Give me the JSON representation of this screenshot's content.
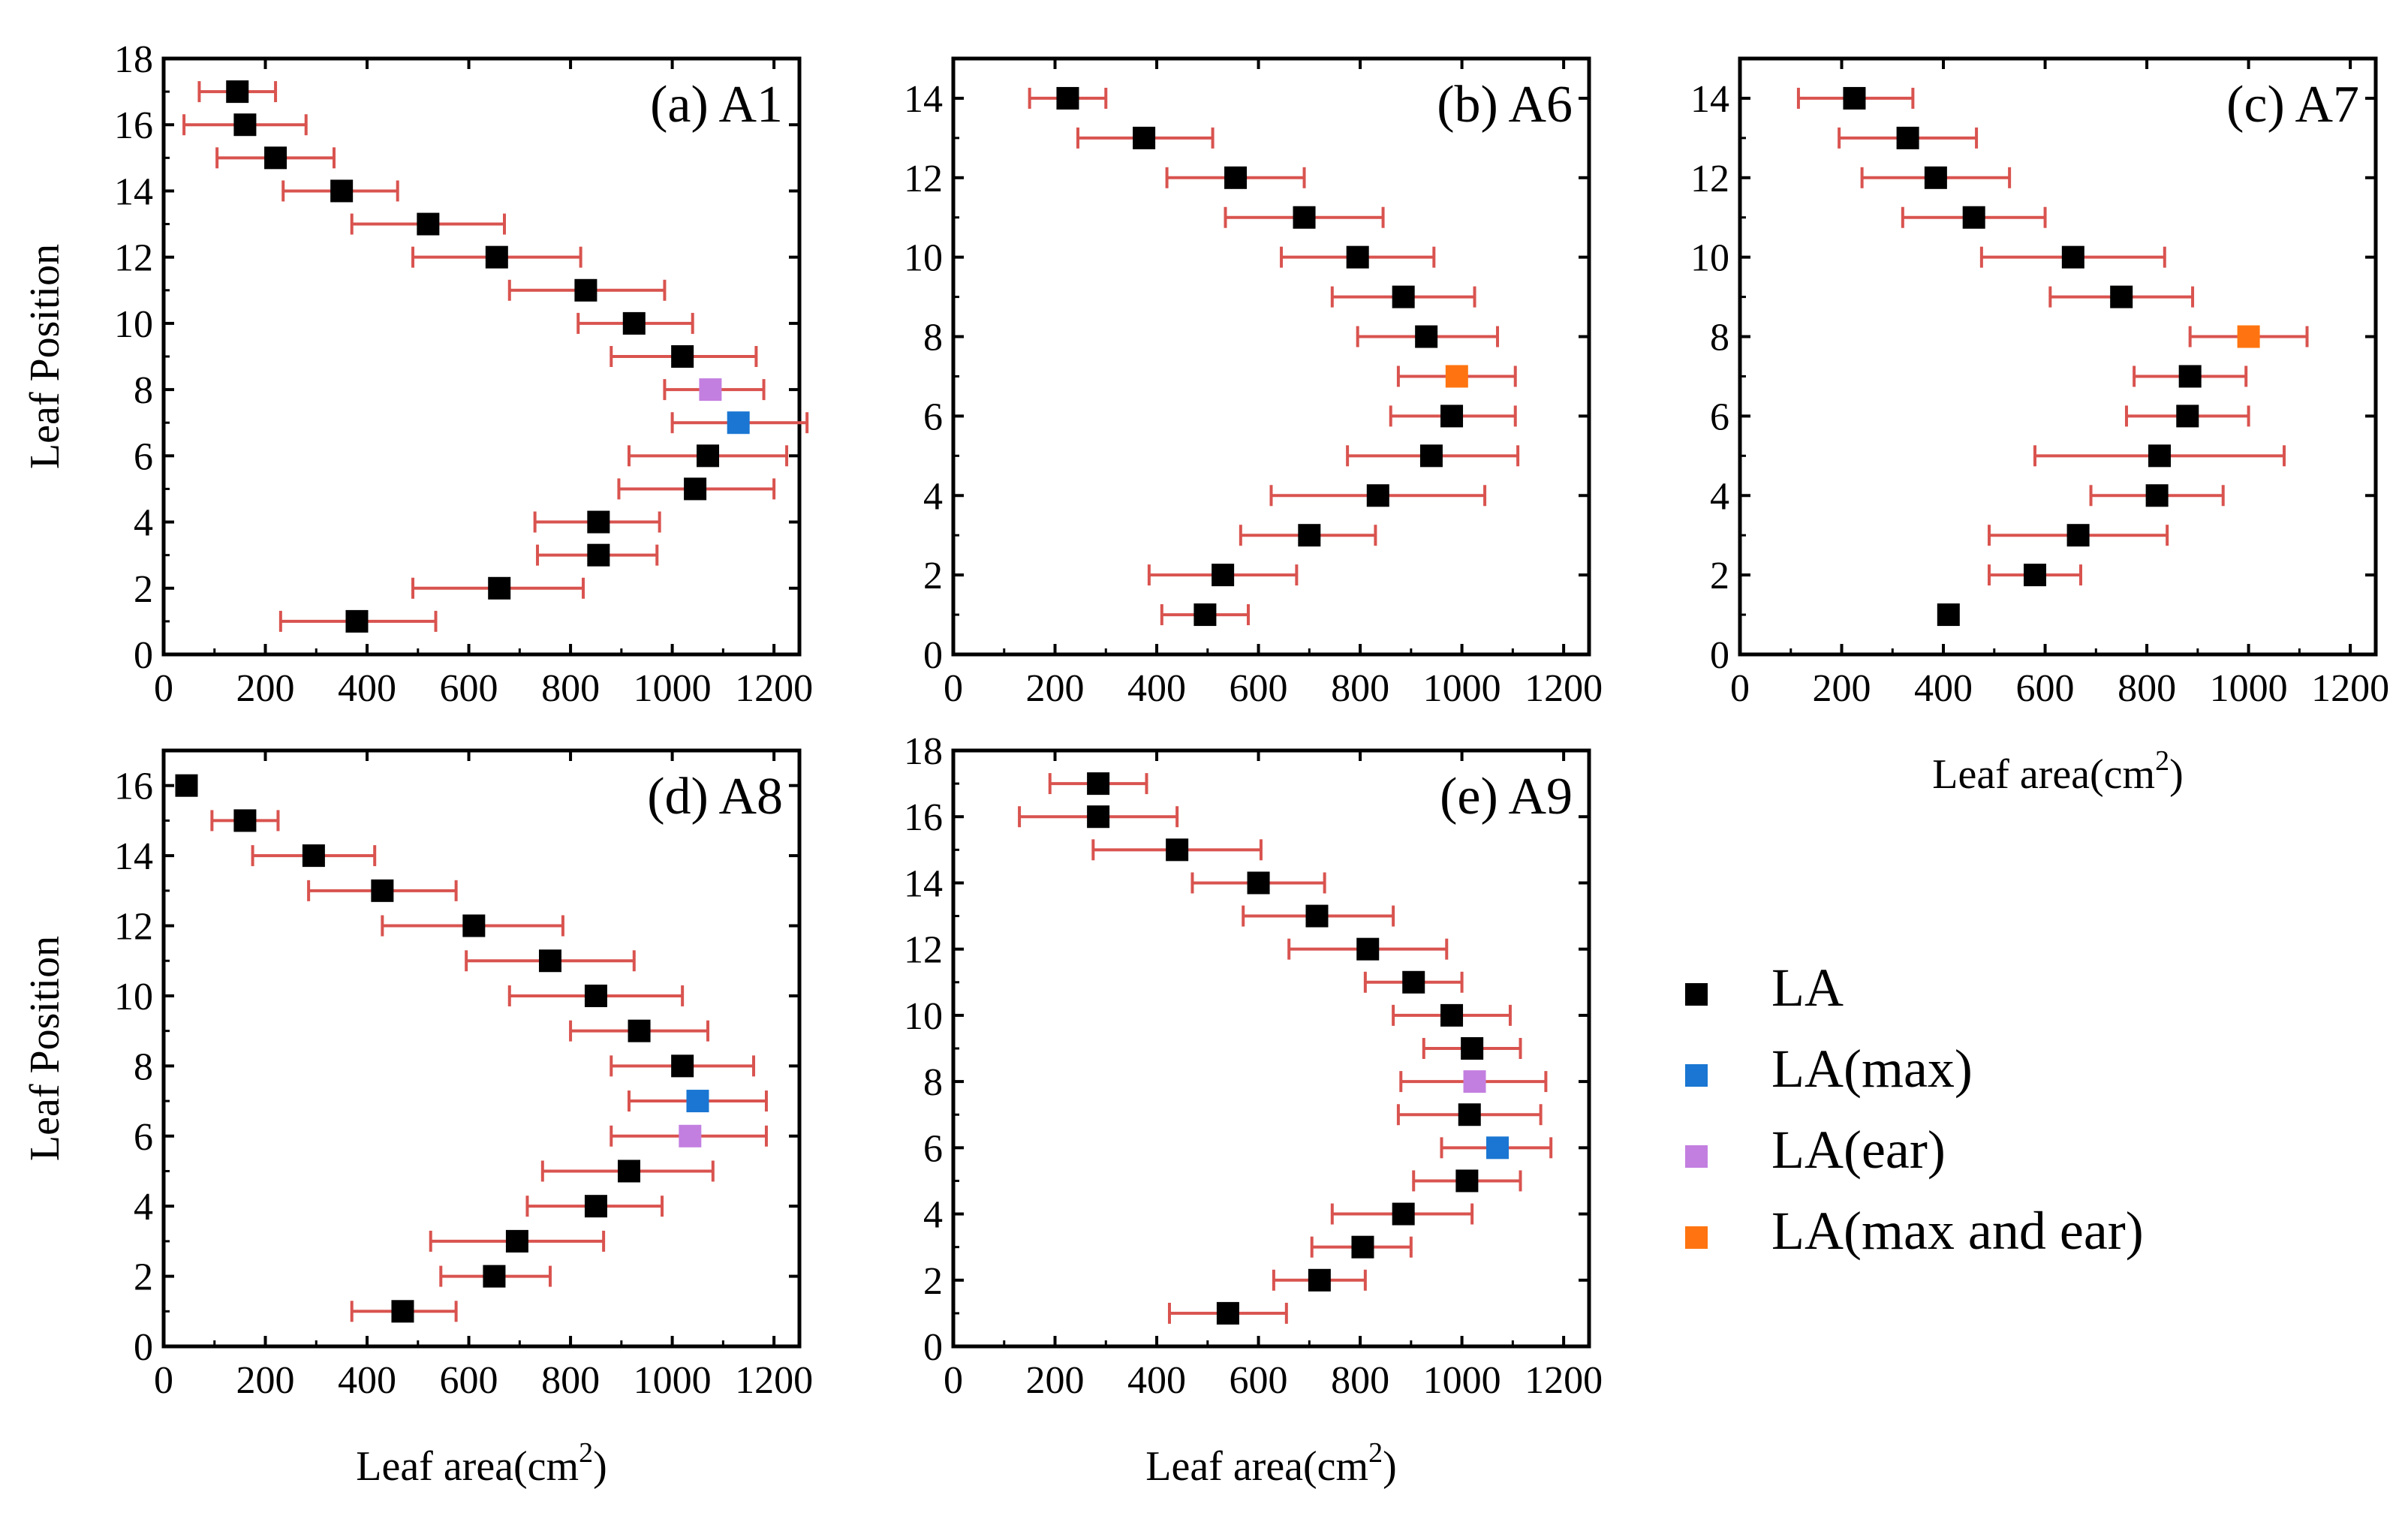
{
  "figure": {
    "xlabel_prefix": "Leaf area(cm",
    "xlabel_sup": "2",
    "xlabel_suffix": ")",
    "ylabel": "Leaf  Position"
  },
  "legend": [
    {
      "label": "LA",
      "color": "#000000"
    },
    {
      "label": "LA(max)",
      "color": "#1a76d2"
    },
    {
      "label": "LA(ear)",
      "color": "#c37fe0"
    },
    {
      "label": "LA(max and ear)",
      "color": "#ff7410"
    }
  ],
  "colors": {
    "LA": "#000000",
    "max": "#1a76d2",
    "ear": "#c37fe0",
    "maxear": "#ff7410",
    "errorbar": "#d9534f"
  },
  "chart_data": [
    {
      "id": "a",
      "title": "(a) A1",
      "type": "scatter",
      "xlabel": "",
      "ylabel": "Leaf  Position",
      "xlim": [
        0,
        1250
      ],
      "ylim": [
        0,
        18
      ],
      "xticks": [
        0,
        200,
        400,
        600,
        800,
        1000,
        1200
      ],
      "yticks": [
        0,
        2,
        4,
        6,
        8,
        10,
        12,
        14,
        16,
        18
      ],
      "points": [
        {
          "y": 17,
          "x": 145,
          "lo": 70,
          "hi": 220,
          "kind": "LA"
        },
        {
          "y": 16,
          "x": 160,
          "lo": 40,
          "hi": 280,
          "kind": "LA"
        },
        {
          "y": 15,
          "x": 220,
          "lo": 105,
          "hi": 335,
          "kind": "LA"
        },
        {
          "y": 14,
          "x": 350,
          "lo": 235,
          "hi": 460,
          "kind": "LA"
        },
        {
          "y": 13,
          "x": 520,
          "lo": 370,
          "hi": 670,
          "kind": "LA"
        },
        {
          "y": 12,
          "x": 655,
          "lo": 490,
          "hi": 820,
          "kind": "LA"
        },
        {
          "y": 11,
          "x": 830,
          "lo": 680,
          "hi": 985,
          "kind": "LA"
        },
        {
          "y": 10,
          "x": 925,
          "lo": 815,
          "hi": 1040,
          "kind": "LA"
        },
        {
          "y": 9,
          "x": 1020,
          "lo": 880,
          "hi": 1165,
          "kind": "LA"
        },
        {
          "y": 8,
          "x": 1075,
          "lo": 985,
          "hi": 1180,
          "kind": "ear"
        },
        {
          "y": 7,
          "x": 1130,
          "lo": 1000,
          "hi": 1265,
          "kind": "max"
        },
        {
          "y": 6,
          "x": 1070,
          "lo": 915,
          "hi": 1225,
          "kind": "LA"
        },
        {
          "y": 5,
          "x": 1045,
          "lo": 895,
          "hi": 1200,
          "kind": "LA"
        },
        {
          "y": 4,
          "x": 855,
          "lo": 730,
          "hi": 975,
          "kind": "LA"
        },
        {
          "y": 3,
          "x": 855,
          "lo": 735,
          "hi": 970,
          "kind": "LA"
        },
        {
          "y": 2,
          "x": 660,
          "lo": 490,
          "hi": 825,
          "kind": "LA"
        },
        {
          "y": 1,
          "x": 380,
          "lo": 230,
          "hi": 535,
          "kind": "LA"
        }
      ]
    },
    {
      "id": "b",
      "title": "(b) A6",
      "type": "scatter",
      "xlabel": "",
      "ylabel": "",
      "xlim": [
        0,
        1250
      ],
      "ylim": [
        0,
        15
      ],
      "xticks": [
        0,
        200,
        400,
        600,
        800,
        1000,
        1200
      ],
      "yticks": [
        0,
        2,
        4,
        6,
        8,
        10,
        12,
        14
      ],
      "points": [
        {
          "y": 14,
          "x": 225,
          "lo": 150,
          "hi": 300,
          "kind": "LA"
        },
        {
          "y": 13,
          "x": 375,
          "lo": 245,
          "hi": 510,
          "kind": "LA"
        },
        {
          "y": 12,
          "x": 555,
          "lo": 420,
          "hi": 690,
          "kind": "LA"
        },
        {
          "y": 11,
          "x": 690,
          "lo": 535,
          "hi": 845,
          "kind": "LA"
        },
        {
          "y": 10,
          "x": 795,
          "lo": 645,
          "hi": 945,
          "kind": "LA"
        },
        {
          "y": 9,
          "x": 885,
          "lo": 745,
          "hi": 1025,
          "kind": "LA"
        },
        {
          "y": 8,
          "x": 930,
          "lo": 795,
          "hi": 1070,
          "kind": "LA"
        },
        {
          "y": 7,
          "x": 990,
          "lo": 875,
          "hi": 1105,
          "kind": "maxear"
        },
        {
          "y": 6,
          "x": 980,
          "lo": 860,
          "hi": 1105,
          "kind": "LA"
        },
        {
          "y": 5,
          "x": 940,
          "lo": 775,
          "hi": 1110,
          "kind": "LA"
        },
        {
          "y": 4,
          "x": 835,
          "lo": 625,
          "hi": 1045,
          "kind": "LA"
        },
        {
          "y": 3,
          "x": 700,
          "lo": 565,
          "hi": 830,
          "kind": "LA"
        },
        {
          "y": 2,
          "x": 530,
          "lo": 385,
          "hi": 675,
          "kind": "LA"
        },
        {
          "y": 1,
          "x": 495,
          "lo": 410,
          "hi": 580,
          "kind": "LA"
        }
      ]
    },
    {
      "id": "c",
      "title": "(c) A7",
      "type": "scatter",
      "xlabel": "Leaf area(cm2)",
      "ylabel": "",
      "xlim": [
        0,
        1250
      ],
      "ylim": [
        0,
        15
      ],
      "xticks": [
        0,
        200,
        400,
        600,
        800,
        1000,
        1200
      ],
      "yticks": [
        0,
        2,
        4,
        6,
        8,
        10,
        12,
        14
      ],
      "points": [
        {
          "y": 14,
          "x": 225,
          "lo": 115,
          "hi": 340,
          "kind": "LA"
        },
        {
          "y": 13,
          "x": 330,
          "lo": 195,
          "hi": 465,
          "kind": "LA"
        },
        {
          "y": 12,
          "x": 385,
          "lo": 240,
          "hi": 530,
          "kind": "LA"
        },
        {
          "y": 11,
          "x": 460,
          "lo": 320,
          "hi": 600,
          "kind": "LA"
        },
        {
          "y": 10,
          "x": 655,
          "lo": 475,
          "hi": 835,
          "kind": "LA"
        },
        {
          "y": 9,
          "x": 750,
          "lo": 610,
          "hi": 890,
          "kind": "LA"
        },
        {
          "y": 8,
          "x": 1000,
          "lo": 885,
          "hi": 1115,
          "kind": "maxear"
        },
        {
          "y": 7,
          "x": 885,
          "lo": 775,
          "hi": 995,
          "kind": "LA"
        },
        {
          "y": 6,
          "x": 880,
          "lo": 760,
          "hi": 1000,
          "kind": "LA"
        },
        {
          "y": 5,
          "x": 825,
          "lo": 580,
          "hi": 1070,
          "kind": "LA"
        },
        {
          "y": 4,
          "x": 820,
          "lo": 690,
          "hi": 950,
          "kind": "LA"
        },
        {
          "y": 3,
          "x": 665,
          "lo": 490,
          "hi": 840,
          "kind": "LA"
        },
        {
          "y": 2,
          "x": 580,
          "lo": 490,
          "hi": 670,
          "kind": "LA"
        },
        {
          "y": 1,
          "x": 410,
          "lo": 410,
          "hi": 410,
          "kind": "LA"
        }
      ]
    },
    {
      "id": "d",
      "title": "(d) A8",
      "type": "scatter",
      "xlabel": "Leaf area(cm2)",
      "ylabel": "Leaf  Position",
      "xlim": [
        0,
        1250
      ],
      "ylim": [
        0,
        17
      ],
      "xticks": [
        0,
        200,
        400,
        600,
        800,
        1000,
        1200
      ],
      "yticks": [
        0,
        2,
        4,
        6,
        8,
        10,
        12,
        14,
        16
      ],
      "points": [
        {
          "y": 16,
          "x": 45,
          "lo": 45,
          "hi": 45,
          "kind": "LA"
        },
        {
          "y": 15,
          "x": 160,
          "lo": 95,
          "hi": 225,
          "kind": "LA"
        },
        {
          "y": 14,
          "x": 295,
          "lo": 175,
          "hi": 415,
          "kind": "LA"
        },
        {
          "y": 13,
          "x": 430,
          "lo": 285,
          "hi": 575,
          "kind": "LA"
        },
        {
          "y": 12,
          "x": 610,
          "lo": 430,
          "hi": 785,
          "kind": "LA"
        },
        {
          "y": 11,
          "x": 760,
          "lo": 595,
          "hi": 925,
          "kind": "LA"
        },
        {
          "y": 10,
          "x": 850,
          "lo": 680,
          "hi": 1020,
          "kind": "LA"
        },
        {
          "y": 9,
          "x": 935,
          "lo": 800,
          "hi": 1070,
          "kind": "LA"
        },
        {
          "y": 8,
          "x": 1020,
          "lo": 880,
          "hi": 1160,
          "kind": "LA"
        },
        {
          "y": 7,
          "x": 1050,
          "lo": 915,
          "hi": 1185,
          "kind": "max"
        },
        {
          "y": 6,
          "x": 1035,
          "lo": 880,
          "hi": 1185,
          "kind": "ear"
        },
        {
          "y": 5,
          "x": 915,
          "lo": 745,
          "hi": 1080,
          "kind": "LA"
        },
        {
          "y": 4,
          "x": 850,
          "lo": 715,
          "hi": 980,
          "kind": "LA"
        },
        {
          "y": 3,
          "x": 695,
          "lo": 525,
          "hi": 865,
          "kind": "LA"
        },
        {
          "y": 2,
          "x": 650,
          "lo": 545,
          "hi": 760,
          "kind": "LA"
        },
        {
          "y": 1,
          "x": 470,
          "lo": 370,
          "hi": 575,
          "kind": "LA"
        }
      ]
    },
    {
      "id": "e",
      "title": "(e) A9",
      "type": "scatter",
      "xlabel": "Leaf area(cm2)",
      "ylabel": "",
      "xlim": [
        0,
        1250
      ],
      "ylim": [
        0,
        18
      ],
      "xticks": [
        0,
        200,
        400,
        600,
        800,
        1000,
        1200
      ],
      "yticks": [
        0,
        2,
        4,
        6,
        8,
        10,
        12,
        14,
        16,
        18
      ],
      "points": [
        {
          "y": 17,
          "x": 285,
          "lo": 190,
          "hi": 380,
          "kind": "LA"
        },
        {
          "y": 16,
          "x": 285,
          "lo": 130,
          "hi": 440,
          "kind": "LA"
        },
        {
          "y": 15,
          "x": 440,
          "lo": 275,
          "hi": 605,
          "kind": "LA"
        },
        {
          "y": 14,
          "x": 600,
          "lo": 470,
          "hi": 730,
          "kind": "LA"
        },
        {
          "y": 13,
          "x": 715,
          "lo": 570,
          "hi": 865,
          "kind": "LA"
        },
        {
          "y": 12,
          "x": 815,
          "lo": 660,
          "hi": 970,
          "kind": "LA"
        },
        {
          "y": 11,
          "x": 905,
          "lo": 810,
          "hi": 1000,
          "kind": "LA"
        },
        {
          "y": 10,
          "x": 980,
          "lo": 865,
          "hi": 1095,
          "kind": "LA"
        },
        {
          "y": 9,
          "x": 1020,
          "lo": 925,
          "hi": 1115,
          "kind": "LA"
        },
        {
          "y": 8,
          "x": 1025,
          "lo": 880,
          "hi": 1165,
          "kind": "ear"
        },
        {
          "y": 7,
          "x": 1015,
          "lo": 875,
          "hi": 1155,
          "kind": "LA"
        },
        {
          "y": 6,
          "x": 1070,
          "lo": 960,
          "hi": 1175,
          "kind": "max"
        },
        {
          "y": 5,
          "x": 1010,
          "lo": 905,
          "hi": 1115,
          "kind": "LA"
        },
        {
          "y": 4,
          "x": 885,
          "lo": 745,
          "hi": 1020,
          "kind": "LA"
        },
        {
          "y": 3,
          "x": 805,
          "lo": 705,
          "hi": 900,
          "kind": "LA"
        },
        {
          "y": 2,
          "x": 720,
          "lo": 630,
          "hi": 810,
          "kind": "LA"
        },
        {
          "y": 1,
          "x": 540,
          "lo": 425,
          "hi": 655,
          "kind": "LA"
        }
      ]
    }
  ]
}
